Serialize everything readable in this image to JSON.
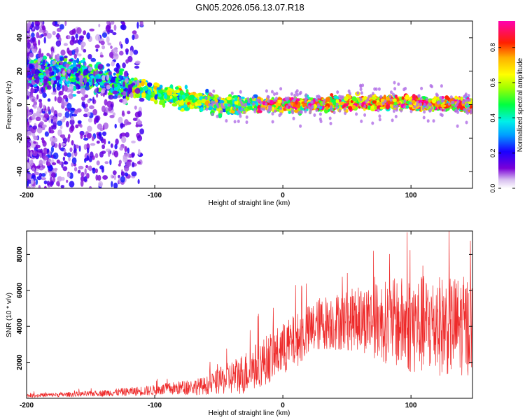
{
  "title": "GN05.2026.056.13.07.R18",
  "colors": {
    "snr_line": "#ee2a2a",
    "axis": "#000000",
    "background": "#ffffff"
  },
  "chart_data": [
    {
      "type": "heatmap",
      "xlabel": "Height of straight line (km)",
      "ylabel": "Frequency (Hz)",
      "xlim": [
        -200,
        148
      ],
      "ylim": [
        -50,
        50
      ],
      "x_ticks": [
        "-200",
        "-100",
        "0",
        "100"
      ],
      "y_ticks": [
        "-40",
        "-20",
        "0",
        "20",
        "40"
      ],
      "colorbar": {
        "label": "Normalized spectral amplitude",
        "range": [
          0,
          0.95
        ],
        "ticks": [
          "0.0",
          "0.2",
          "0.4",
          "0.6",
          "0.8"
        ],
        "colormap": "rainbow"
      },
      "ridge": [
        {
          "x": -175,
          "y": 19
        },
        {
          "x": -150,
          "y": 17
        },
        {
          "x": -125,
          "y": 12
        },
        {
          "x": -100,
          "y": 7
        },
        {
          "x": -75,
          "y": 3
        },
        {
          "x": -50,
          "y": 0
        },
        {
          "x": -25,
          "y": 0
        },
        {
          "x": 0,
          "y": 0
        },
        {
          "x": 50,
          "y": 1
        },
        {
          "x": 100,
          "y": 1
        },
        {
          "x": 145,
          "y": 0
        }
      ]
    },
    {
      "type": "line",
      "xlabel": "Height of straight line (km)",
      "ylabel": "SNR (10 * v/v)",
      "xlim": [
        -200,
        148
      ],
      "ylim": [
        0,
        9300
      ],
      "x_ticks": [
        "-200",
        "-100",
        "0",
        "100"
      ],
      "y_ticks": [
        "2000",
        "4000",
        "6000",
        "8000"
      ],
      "envelope": [
        {
          "x": -200,
          "mean": 150,
          "spread": 100
        },
        {
          "x": -150,
          "mean": 250,
          "spread": 150
        },
        {
          "x": -100,
          "mean": 450,
          "spread": 300
        },
        {
          "x": -60,
          "mean": 700,
          "spread": 500
        },
        {
          "x": -30,
          "mean": 1400,
          "spread": 1200
        },
        {
          "x": 0,
          "mean": 2700,
          "spread": 1500
        },
        {
          "x": 30,
          "mean": 4200,
          "spread": 1500
        },
        {
          "x": 60,
          "mean": 4400,
          "spread": 1800
        },
        {
          "x": 100,
          "mean": 4100,
          "spread": 2800
        },
        {
          "x": 148,
          "mean": 4000,
          "spread": 2800
        }
      ]
    }
  ]
}
